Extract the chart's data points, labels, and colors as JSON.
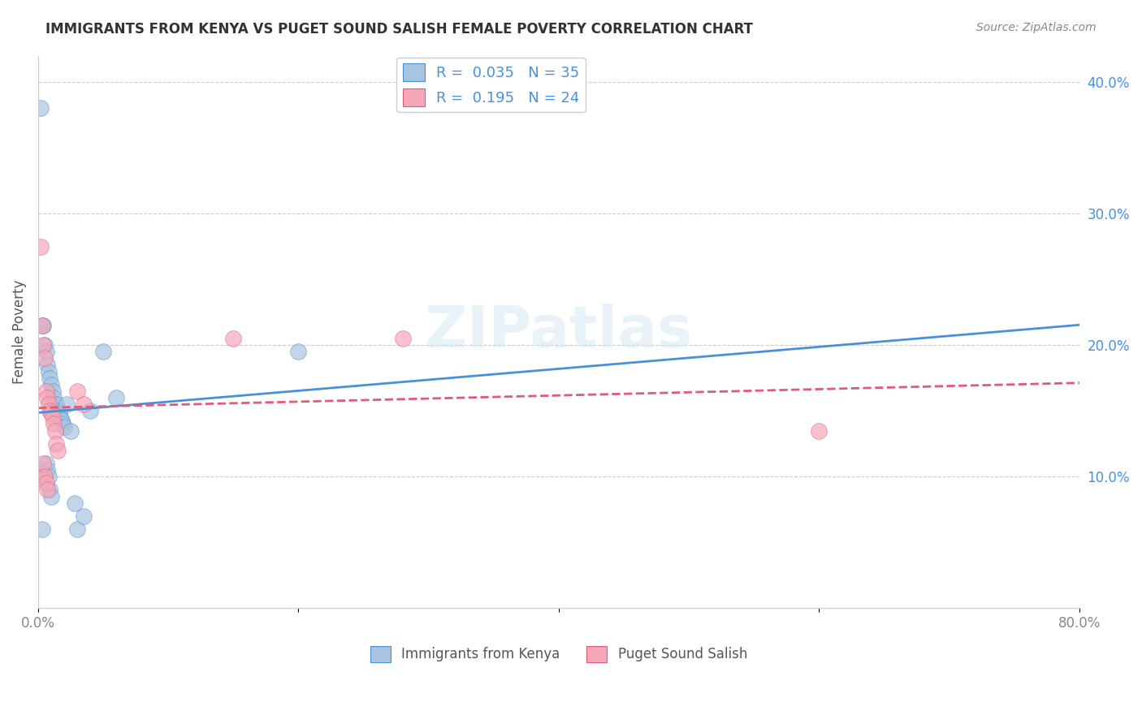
{
  "title": "IMMIGRANTS FROM KENYA VS PUGET SOUND SALISH FEMALE POVERTY CORRELATION CHART",
  "source": "Source: ZipAtlas.com",
  "ylabel": "Female Poverty",
  "xlim": [
    0,
    0.8
  ],
  "ylim": [
    0,
    0.42
  ],
  "watermark": "ZIPatlas",
  "legend": {
    "blue_r": "0.035",
    "blue_n": "35",
    "pink_r": "0.195",
    "pink_n": "24"
  },
  "blue_color": "#a8c4e0",
  "pink_color": "#f4a8b8",
  "blue_line_color": "#4a90d9",
  "pink_line_color": "#e05a7a",
  "blue_scatter": {
    "x": [
      0.002,
      0.003,
      0.004,
      0.005,
      0.006,
      0.007,
      0.008,
      0.009,
      0.01,
      0.011,
      0.012,
      0.013,
      0.014,
      0.015,
      0.016,
      0.017,
      0.018,
      0.019,
      0.02,
      0.022,
      0.025,
      0.028,
      0.03,
      0.035,
      0.04,
      0.05,
      0.06,
      0.005,
      0.006,
      0.007,
      0.008,
      0.009,
      0.01,
      0.2,
      0.003
    ],
    "y": [
      0.38,
      0.215,
      0.215,
      0.2,
      0.195,
      0.185,
      0.18,
      0.175,
      0.17,
      0.165,
      0.16,
      0.155,
      0.155,
      0.15,
      0.148,
      0.145,
      0.143,
      0.14,
      0.138,
      0.155,
      0.135,
      0.08,
      0.06,
      0.07,
      0.15,
      0.195,
      0.16,
      0.1,
      0.11,
      0.105,
      0.1,
      0.09,
      0.085,
      0.195,
      0.06
    ]
  },
  "pink_scatter": {
    "x": [
      0.002,
      0.003,
      0.004,
      0.005,
      0.006,
      0.007,
      0.008,
      0.009,
      0.01,
      0.011,
      0.012,
      0.013,
      0.014,
      0.015,
      0.03,
      0.035,
      0.15,
      0.6,
      0.003,
      0.004,
      0.005,
      0.006,
      0.007,
      0.28
    ],
    "y": [
      0.275,
      0.215,
      0.2,
      0.19,
      0.165,
      0.16,
      0.155,
      0.15,
      0.148,
      0.145,
      0.14,
      0.135,
      0.125,
      0.12,
      0.165,
      0.155,
      0.205,
      0.135,
      0.1,
      0.11,
      0.1,
      0.095,
      0.09,
      0.205
    ]
  }
}
